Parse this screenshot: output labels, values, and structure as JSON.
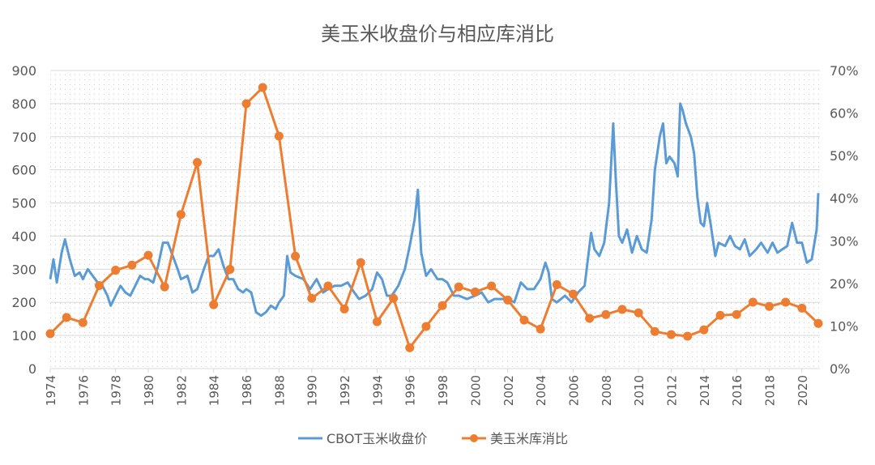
{
  "chart_data": {
    "type": "line",
    "title": "美玉米收盘价与相应库消比",
    "x_ticks": [
      "1974",
      "1976",
      "1978",
      "1980",
      "1982",
      "1984",
      "1986",
      "1988",
      "1990",
      "1992",
      "1994",
      "1996",
      "1998",
      "2000",
      "2002",
      "2004",
      "2006",
      "2008",
      "2010",
      "2012",
      "2014",
      "2016",
      "2018",
      "2020"
    ],
    "y_left": {
      "range": [
        0,
        900
      ],
      "ticks": [
        "0",
        "100",
        "200",
        "300",
        "400",
        "500",
        "600",
        "700",
        "800",
        "900"
      ]
    },
    "y_right": {
      "range": [
        0,
        0.7
      ],
      "ticks": [
        "0%",
        "10%",
        "20%",
        "30%",
        "40%",
        "50%",
        "60%",
        "70%"
      ]
    },
    "grid": true,
    "legend": "bottom",
    "series": [
      {
        "name": "CBOT玉米收盘价",
        "axis": "left",
        "color": "#5b9bd5",
        "points": [
          [
            1974.0,
            270
          ],
          [
            1974.2,
            330
          ],
          [
            1974.4,
            260
          ],
          [
            1974.7,
            350
          ],
          [
            1974.9,
            390
          ],
          [
            1975.2,
            330
          ],
          [
            1975.5,
            280
          ],
          [
            1975.8,
            290
          ],
          [
            1976.0,
            270
          ],
          [
            1976.3,
            300
          ],
          [
            1976.6,
            280
          ],
          [
            1976.9,
            260
          ],
          [
            1977.2,
            250
          ],
          [
            1977.5,
            220
          ],
          [
            1977.7,
            190
          ],
          [
            1978.0,
            220
          ],
          [
            1978.3,
            250
          ],
          [
            1978.6,
            230
          ],
          [
            1978.9,
            220
          ],
          [
            1979.2,
            250
          ],
          [
            1979.5,
            280
          ],
          [
            1979.8,
            270
          ],
          [
            1980.0,
            270
          ],
          [
            1980.3,
            260
          ],
          [
            1980.6,
            310
          ],
          [
            1980.9,
            380
          ],
          [
            1981.2,
            380
          ],
          [
            1981.5,
            340
          ],
          [
            1981.8,
            300
          ],
          [
            1982.0,
            270
          ],
          [
            1982.4,
            280
          ],
          [
            1982.7,
            230
          ],
          [
            1983.0,
            240
          ],
          [
            1983.4,
            300
          ],
          [
            1983.7,
            340
          ],
          [
            1984.0,
            340
          ],
          [
            1984.3,
            360
          ],
          [
            1984.6,
            310
          ],
          [
            1984.9,
            270
          ],
          [
            1985.2,
            270
          ],
          [
            1985.5,
            240
          ],
          [
            1985.8,
            230
          ],
          [
            1986.0,
            240
          ],
          [
            1986.3,
            230
          ],
          [
            1986.6,
            170
          ],
          [
            1986.9,
            160
          ],
          [
            1987.2,
            170
          ],
          [
            1987.5,
            190
          ],
          [
            1987.8,
            180
          ],
          [
            1988.0,
            200
          ],
          [
            1988.3,
            220
          ],
          [
            1988.5,
            340
          ],
          [
            1988.7,
            290
          ],
          [
            1989.0,
            280
          ],
          [
            1989.5,
            270
          ],
          [
            1989.9,
            240
          ],
          [
            1990.3,
            270
          ],
          [
            1990.7,
            230
          ],
          [
            1991.0,
            240
          ],
          [
            1991.4,
            250
          ],
          [
            1991.8,
            250
          ],
          [
            1992.2,
            260
          ],
          [
            1992.6,
            230
          ],
          [
            1992.9,
            210
          ],
          [
            1993.3,
            220
          ],
          [
            1993.7,
            240
          ],
          [
            1994.0,
            290
          ],
          [
            1994.3,
            270
          ],
          [
            1994.6,
            220
          ],
          [
            1994.9,
            220
          ],
          [
            1995.3,
            250
          ],
          [
            1995.7,
            300
          ],
          [
            1996.0,
            370
          ],
          [
            1996.3,
            450
          ],
          [
            1996.5,
            540
          ],
          [
            1996.7,
            350
          ],
          [
            1997.0,
            280
          ],
          [
            1997.3,
            300
          ],
          [
            1997.7,
            270
          ],
          [
            1998.0,
            270
          ],
          [
            1998.3,
            260
          ],
          [
            1998.7,
            220
          ],
          [
            1999.0,
            220
          ],
          [
            1999.5,
            210
          ],
          [
            2000.0,
            220
          ],
          [
            2000.4,
            230
          ],
          [
            2000.8,
            200
          ],
          [
            2001.2,
            210
          ],
          [
            2001.6,
            210
          ],
          [
            2002.0,
            210
          ],
          [
            2002.4,
            200
          ],
          [
            2002.8,
            260
          ],
          [
            2003.2,
            240
          ],
          [
            2003.6,
            240
          ],
          [
            2004.0,
            270
          ],
          [
            2004.3,
            320
          ],
          [
            2004.5,
            290
          ],
          [
            2004.7,
            210
          ],
          [
            2005.0,
            200
          ],
          [
            2005.5,
            220
          ],
          [
            2005.9,
            200
          ],
          [
            2006.3,
            230
          ],
          [
            2006.7,
            250
          ],
          [
            2006.9,
            330
          ],
          [
            2007.1,
            410
          ],
          [
            2007.3,
            360
          ],
          [
            2007.6,
            340
          ],
          [
            2007.9,
            380
          ],
          [
            2008.2,
            500
          ],
          [
            2008.45,
            740
          ],
          [
            2008.6,
            580
          ],
          [
            2008.8,
            400
          ],
          [
            2009.0,
            380
          ],
          [
            2009.3,
            420
          ],
          [
            2009.6,
            350
          ],
          [
            2009.9,
            400
          ],
          [
            2010.2,
            360
          ],
          [
            2010.5,
            350
          ],
          [
            2010.8,
            450
          ],
          [
            2011.0,
            600
          ],
          [
            2011.3,
            700
          ],
          [
            2011.5,
            740
          ],
          [
            2011.7,
            620
          ],
          [
            2011.9,
            640
          ],
          [
            2012.2,
            620
          ],
          [
            2012.4,
            580
          ],
          [
            2012.55,
            800
          ],
          [
            2012.7,
            780
          ],
          [
            2012.9,
            740
          ],
          [
            2013.2,
            700
          ],
          [
            2013.4,
            650
          ],
          [
            2013.6,
            520
          ],
          [
            2013.8,
            440
          ],
          [
            2014.0,
            430
          ],
          [
            2014.2,
            500
          ],
          [
            2014.4,
            440
          ],
          [
            2014.7,
            340
          ],
          [
            2014.9,
            380
          ],
          [
            2015.3,
            370
          ],
          [
            2015.6,
            400
          ],
          [
            2015.9,
            370
          ],
          [
            2016.2,
            360
          ],
          [
            2016.5,
            390
          ],
          [
            2016.8,
            340
          ],
          [
            2017.2,
            360
          ],
          [
            2017.5,
            380
          ],
          [
            2017.9,
            350
          ],
          [
            2018.2,
            380
          ],
          [
            2018.5,
            350
          ],
          [
            2018.8,
            360
          ],
          [
            2019.1,
            370
          ],
          [
            2019.4,
            440
          ],
          [
            2019.7,
            380
          ],
          [
            2020.0,
            380
          ],
          [
            2020.3,
            320
          ],
          [
            2020.6,
            330
          ],
          [
            2020.9,
            420
          ],
          [
            2021.0,
            530
          ]
        ]
      },
      {
        "name": "美玉米库消比",
        "axis": "right",
        "color": "#ed7d31",
        "x": [
          1974,
          1975,
          1976,
          1977,
          1978,
          1979,
          1980,
          1981,
          1982,
          1983,
          1984,
          1985,
          1986,
          1987,
          1988,
          1989,
          1990,
          1991,
          1992,
          1993,
          1994,
          1995,
          1996,
          1997,
          1998,
          1999,
          2000,
          2001,
          2002,
          2003,
          2004,
          2005,
          2006,
          2007,
          2008,
          2009,
          2010,
          2011,
          2012,
          2013,
          2014,
          2015,
          2016,
          2017,
          2018,
          2019,
          2020,
          2021
        ],
        "values": [
          0.082,
          0.12,
          0.108,
          0.195,
          0.231,
          0.243,
          0.266,
          0.192,
          0.362,
          0.484,
          0.15,
          0.233,
          0.622,
          0.66,
          0.546,
          0.264,
          0.165,
          0.194,
          0.14,
          0.249,
          0.11,
          0.165,
          0.049,
          0.099,
          0.148,
          0.192,
          0.18,
          0.194,
          0.161,
          0.114,
          0.093,
          0.197,
          0.175,
          0.118,
          0.127,
          0.139,
          0.131,
          0.087,
          0.08,
          0.076,
          0.091,
          0.125,
          0.127,
          0.156,
          0.146,
          0.156,
          0.142,
          0.106
        ]
      }
    ]
  }
}
